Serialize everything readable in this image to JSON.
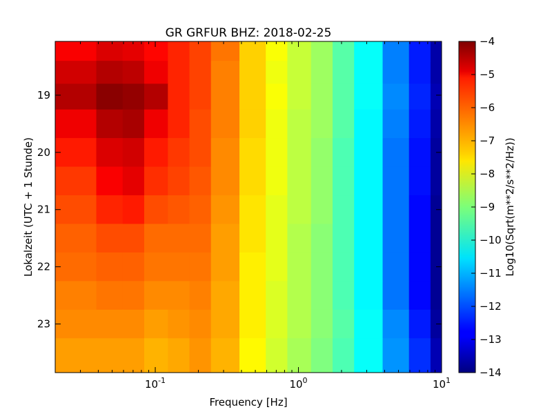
{
  "chart_data": {
    "type": "heatmap",
    "title": "GR GRFUR BHZ: 2018-02-25",
    "xlabel": "Frequency [Hz]",
    "ylabel": "Lokalzeit (UTC + 1 Stunde)",
    "x_scale": "log",
    "xlim": [
      0.02,
      10
    ],
    "x_ticks": [
      0.1,
      1,
      10
    ],
    "x_tick_labels": [
      {
        "base": "10",
        "exp": "-1"
      },
      {
        "base": "10",
        "exp": "0"
      },
      {
        "base": "10",
        "exp": "1"
      }
    ],
    "y_direction": "time increases downward",
    "ylim": [
      18.06,
      23.85
    ],
    "y_ticks": [
      19,
      20,
      21,
      22,
      23
    ],
    "y_tick_labels": [
      "19",
      "20",
      "21",
      "22",
      "23"
    ],
    "colorbar": {
      "label": "Log10(Sqrt(m**2/s**2/Hz))",
      "range": [
        -14,
        -4
      ],
      "ticks": [
        -4,
        -5,
        -6,
        -7,
        -8,
        -9,
        -10,
        -11,
        -12,
        -13,
        -14
      ],
      "tick_labels": [
        "−4",
        "−5",
        "−6",
        "−7",
        "−8",
        "−9",
        "−10",
        "−11",
        "−12",
        "−13",
        "−14"
      ],
      "colormap": "jet"
    },
    "frequency_bins_hz": [
      0.03,
      0.05,
      0.07,
      0.1,
      0.15,
      0.2,
      0.3,
      0.5,
      0.7,
      1.0,
      1.5,
      2,
      3,
      5,
      7,
      10
    ],
    "time_rows_hours": [
      18.2,
      18.6,
      19.0,
      19.5,
      20.0,
      20.5,
      21.0,
      21.5,
      22.0,
      22.5,
      23.0,
      23.5
    ],
    "values": [
      [
        -5.2,
        -4.9,
        -5.0,
        -5.3,
        -5.6,
        -5.9,
        -6.4,
        -7.3,
        -7.8,
        -8.3,
        -8.7,
        -9.4,
        -10.2,
        -11.5,
        -12.5,
        -13.6
      ],
      [
        -4.8,
        -4.5,
        -4.6,
        -5.1,
        -5.6,
        -5.9,
        -6.5,
        -7.3,
        -7.9,
        -8.3,
        -8.7,
        -9.4,
        -10.2,
        -11.5,
        -12.5,
        -13.6
      ],
      [
        -4.5,
        -4.1,
        -4.2,
        -4.5,
        -5.6,
        -5.9,
        -6.5,
        -7.3,
        -7.8,
        -8.3,
        -8.7,
        -9.4,
        -10.2,
        -11.4,
        -12.4,
        -13.5
      ],
      [
        -5.1,
        -4.5,
        -4.4,
        -5.1,
        -5.6,
        -6.0,
        -6.5,
        -7.3,
        -7.9,
        -8.4,
        -8.7,
        -9.4,
        -10.3,
        -11.5,
        -12.5,
        -13.6
      ],
      [
        -5.5,
        -4.9,
        -4.8,
        -5.5,
        -5.8,
        -6.0,
        -6.6,
        -7.4,
        -7.9,
        -8.4,
        -8.8,
        -9.5,
        -10.3,
        -11.6,
        -12.6,
        -13.7
      ],
      [
        -5.8,
        -5.2,
        -5.0,
        -5.7,
        -5.9,
        -6.1,
        -6.6,
        -7.4,
        -7.9,
        -8.4,
        -8.8,
        -9.5,
        -10.3,
        -11.6,
        -12.6,
        -13.7
      ],
      [
        -6.0,
        -5.6,
        -5.5,
        -6.0,
        -6.1,
        -6.2,
        -6.7,
        -7.5,
        -8.0,
        -8.4,
        -8.8,
        -9.5,
        -10.3,
        -11.6,
        -12.7,
        -13.8
      ],
      [
        -6.2,
        -6.0,
        -6.0,
        -6.3,
        -6.3,
        -6.3,
        -6.8,
        -7.5,
        -8.0,
        -8.5,
        -8.9,
        -9.5,
        -10.3,
        -11.6,
        -12.7,
        -13.8
      ],
      [
        -6.3,
        -6.2,
        -6.2,
        -6.4,
        -6.4,
        -6.4,
        -6.8,
        -7.6,
        -8.0,
        -8.5,
        -8.9,
        -9.5,
        -10.3,
        -11.6,
        -12.7,
        -13.8
      ],
      [
        -6.5,
        -6.4,
        -6.4,
        -6.6,
        -6.6,
        -6.5,
        -6.9,
        -7.6,
        -8.1,
        -8.5,
        -8.9,
        -9.5,
        -10.3,
        -11.6,
        -12.7,
        -13.8
      ],
      [
        -6.6,
        -6.6,
        -6.6,
        -6.8,
        -6.7,
        -6.6,
        -6.9,
        -7.6,
        -8.1,
        -8.5,
        -8.9,
        -9.4,
        -10.2,
        -11.4,
        -12.5,
        -13.7
      ],
      [
        -6.8,
        -6.8,
        -6.8,
        -7.0,
        -6.9,
        -6.7,
        -7.0,
        -7.7,
        -8.2,
        -8.6,
        -9.0,
        -9.5,
        -10.2,
        -11.3,
        -12.3,
        -13.5
      ]
    ]
  }
}
